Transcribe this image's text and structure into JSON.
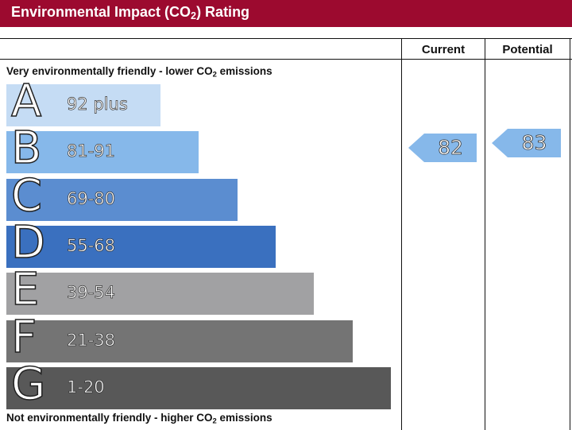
{
  "header": {
    "title_prefix": "Environmental Impact (CO",
    "title_sub": "2",
    "title_suffix": ") Rating",
    "color": "#9c0a2f"
  },
  "table": {
    "col_current": "Current",
    "col_potential": "Potential"
  },
  "notes": {
    "top_prefix": "Very environmentally friendly - lower CO",
    "top_sub": "2",
    "top_suffix": " emissions",
    "bottom_prefix": "Not environmentally friendly - higher CO",
    "bottom_sub": "2",
    "bottom_suffix": " emissions"
  },
  "chart_data": {
    "type": "bar",
    "categories": [
      "A",
      "B",
      "C",
      "D",
      "E",
      "F",
      "G"
    ],
    "ranges": [
      "92 plus",
      "81-91",
      "69-80",
      "55-68",
      "39-54",
      "21-38",
      "1-20"
    ],
    "values": [
      1,
      2,
      3,
      4,
      5,
      6,
      7
    ],
    "colors": [
      "#c5dcf4",
      "#86b8ea",
      "#5b8dd0",
      "#3a70bf",
      "#a1a1a3",
      "#747474",
      "#585858"
    ],
    "current": {
      "label": "Current",
      "value": "82",
      "band": "B",
      "color": "#86b8ea"
    },
    "potential": {
      "label": "Potential",
      "value": "83",
      "band": "B",
      "color": "#86b8ea"
    }
  }
}
